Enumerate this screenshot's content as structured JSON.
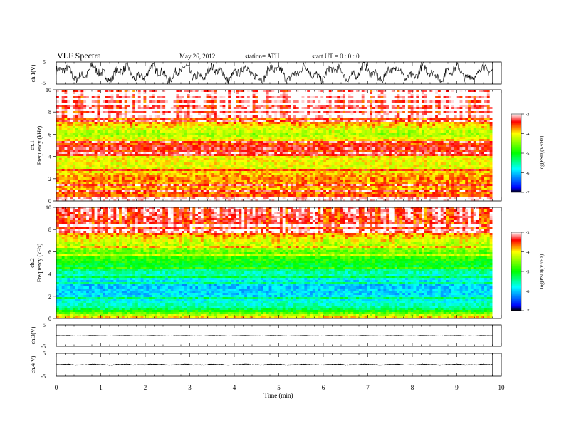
{
  "header": {
    "title": "VLF Spectra",
    "date": "May 26, 2012",
    "station": "station= ATH",
    "start": "start  UT =  0 : 0 : 0"
  },
  "colors": {
    "spectrum_low": "#000000",
    "spectrum_blue": "#0000ff",
    "spectrum_cyan": "#00ffff",
    "spectrum_green": "#00ff00",
    "spectrum_yellow": "#ffff00",
    "spectrum_red": "#ff0000",
    "line": "#000000"
  },
  "chart_data": [
    {
      "type": "line",
      "panel": "ch1-waveform",
      "ylabel": "ch.1(V)",
      "ylim": [
        -5,
        5
      ],
      "yticks": [
        "5",
        "-5"
      ],
      "xlim": [
        0,
        10
      ],
      "x_end": 9.8,
      "series_note_values": {
        "center": 0.0,
        "amplitude": 4.2
      }
    },
    {
      "type": "heatmap",
      "panel": "ch1-spectrogram",
      "channel_label": "ch.1",
      "ylabel": "Frequency (kHz)",
      "ylim": [
        0,
        10
      ],
      "yticks": [
        "0",
        "2",
        "4",
        "6",
        "8",
        "10"
      ],
      "xlim": [
        0,
        10
      ],
      "x_end": 9.8,
      "colorbar": {
        "label": "log(PSD)(V²/Hz)",
        "range": [
          -7,
          -3
        ],
        "ticks": [
          "-3",
          "-4",
          "-5",
          "-6",
          "-7"
        ]
      },
      "profile_kHz_logPSD": [
        [
          0,
          -3.4
        ],
        [
          1,
          -3.8
        ],
        [
          2,
          -3.7
        ],
        [
          3,
          -4.1
        ],
        [
          4,
          -4.0
        ],
        [
          4.7,
          -3.3
        ],
        [
          5,
          -3.5
        ],
        [
          6,
          -4.4
        ],
        [
          7,
          -3.8
        ],
        [
          8,
          -3.3
        ],
        [
          10,
          -3.1
        ]
      ]
    },
    {
      "type": "heatmap",
      "panel": "ch2-spectrogram",
      "channel_label": "ch.2",
      "ylabel": "Frequency (kHz)",
      "ylim": [
        0,
        10
      ],
      "yticks": [
        "0",
        "2",
        "4",
        "6",
        "8",
        "10"
      ],
      "xlim": [
        0,
        10
      ],
      "x_end": 9.8,
      "colorbar": {
        "label": "log(PSD)(V²/Hz)",
        "range": [
          -7,
          -3
        ],
        "ticks": [
          "-3",
          "-4",
          "-5",
          "-6",
          "-7"
        ]
      },
      "profile_kHz_logPSD": [
        [
          0,
          -3.8
        ],
        [
          1,
          -5.5
        ],
        [
          2,
          -5.9
        ],
        [
          3,
          -6.0
        ],
        [
          4,
          -5.6
        ],
        [
          5,
          -5.0
        ],
        [
          6,
          -4.6
        ],
        [
          7,
          -4.1
        ],
        [
          8,
          -3.5
        ],
        [
          10,
          -3.2
        ]
      ]
    },
    {
      "type": "line",
      "panel": "ch3-waveform",
      "ylabel": "ch.3(V)",
      "ylim": [
        -5,
        5
      ],
      "yticks": [
        "5",
        "-5"
      ],
      "xlim": [
        0,
        10
      ],
      "x_end": 9.8,
      "series_note_values": {
        "center": 0.0,
        "amplitude": 0.15
      }
    },
    {
      "type": "line",
      "panel": "ch4-waveform",
      "ylabel": "ch.4(V)",
      "ylim": [
        -5,
        5
      ],
      "yticks": [
        "5",
        "-5"
      ],
      "xlim": [
        0,
        10
      ],
      "x_end": 9.8,
      "series_note_values": {
        "center": 0.0,
        "amplitude": 0.25
      }
    }
  ],
  "xaxis": {
    "label": "Time (min)",
    "ticks": [
      "0",
      "1",
      "2",
      "3",
      "4",
      "5",
      "6",
      "7",
      "8",
      "9",
      "10"
    ]
  }
}
